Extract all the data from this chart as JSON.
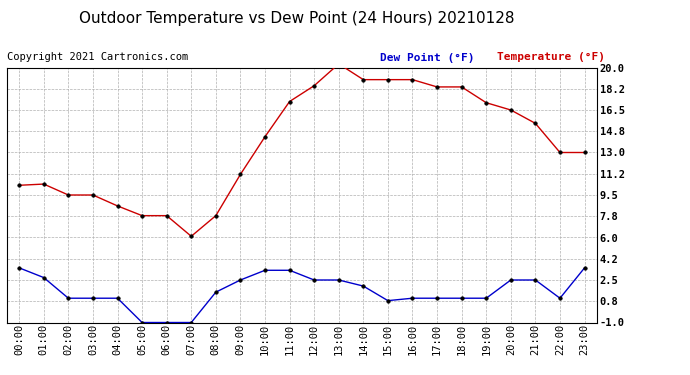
{
  "title": "Outdoor Temperature vs Dew Point (24 Hours) 20210128",
  "copyright": "Copyright 2021 Cartronics.com",
  "legend_blue": "Dew Point (°F)",
  "legend_red": "Temperature (°F)",
  "x_labels": [
    "00:00",
    "01:00",
    "02:00",
    "03:00",
    "04:00",
    "05:00",
    "06:00",
    "07:00",
    "08:00",
    "09:00",
    "10:00",
    "11:00",
    "12:00",
    "13:00",
    "14:00",
    "15:00",
    "16:00",
    "17:00",
    "18:00",
    "19:00",
    "20:00",
    "21:00",
    "22:00",
    "23:00"
  ],
  "temperature": [
    10.3,
    10.4,
    9.5,
    9.5,
    8.6,
    7.8,
    7.8,
    6.1,
    7.8,
    11.2,
    14.3,
    17.2,
    18.5,
    20.3,
    19.0,
    19.0,
    19.0,
    18.4,
    18.4,
    17.1,
    16.5,
    15.4,
    13.0,
    13.0
  ],
  "dew_point": [
    3.5,
    2.7,
    1.0,
    1.0,
    1.0,
    -1.0,
    -1.0,
    -1.0,
    1.5,
    2.5,
    3.3,
    3.3,
    2.5,
    2.5,
    2.0,
    0.8,
    1.0,
    1.0,
    1.0,
    1.0,
    2.5,
    2.5,
    1.0,
    3.5
  ],
  "ylim": [
    -1.0,
    20.0
  ],
  "yticks_right": [
    20.0,
    18.2,
    16.5,
    14.8,
    13.0,
    11.2,
    9.5,
    7.8,
    6.0,
    4.2,
    2.5,
    0.8,
    -1.0
  ],
  "temp_color": "#cc0000",
  "dew_color": "#0000cc",
  "grid_color": "#b0b0b0",
  "bg_color": "#ffffff",
  "title_fontsize": 11,
  "copyright_fontsize": 7.5,
  "legend_fontsize": 8,
  "tick_fontsize": 7.5
}
